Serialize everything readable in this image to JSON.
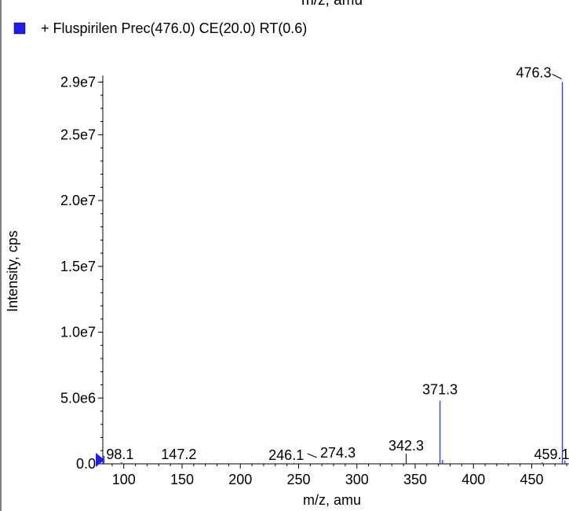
{
  "top_clipped_label": "m/z, amu",
  "legend": {
    "label": "+ Fluspirilen  Prec(476.0) CE(20.0) RT(0.6)",
    "color": "#1e1ef0"
  },
  "chart_data": {
    "type": "bar",
    "xlabel": "m/z, amu",
    "ylabel": "Intensity, cps",
    "xlim": [
      82,
      482
    ],
    "ylim": [
      0,
      29500000
    ],
    "xticks": [
      100,
      150,
      200,
      250,
      300,
      350,
      400,
      450
    ],
    "xtick_labels": [
      "100",
      "150",
      "200",
      "250",
      "300",
      "350",
      "400",
      "450"
    ],
    "yticks": [
      0,
      5000000,
      10000000,
      15000000,
      20000000,
      25000000,
      29000000
    ],
    "ytick_labels": [
      "0.0",
      "5.0e6",
      "1.0e7",
      "1.5e7",
      "2.0e7",
      "2.5e7",
      "2.9e7"
    ],
    "series_color": "#3a3ae0",
    "peaks": [
      {
        "mz": 83,
        "intensity": 600000
      },
      {
        "mz": 98.1,
        "intensity": 120000
      },
      {
        "mz": 147.2,
        "intensity": 60000
      },
      {
        "mz": 246.1,
        "intensity": 80000
      },
      {
        "mz": 274.3,
        "intensity": 60000
      },
      {
        "mz": 342.3,
        "intensity": 80000
      },
      {
        "mz": 371.3,
        "intensity": 4800000
      },
      {
        "mz": 373.5,
        "intensity": 300000
      },
      {
        "mz": 459.1,
        "intensity": 120000
      },
      {
        "mz": 476.3,
        "intensity": 29000000
      },
      {
        "mz": 478.5,
        "intensity": 250000
      }
    ],
    "peak_labels": [
      {
        "text": "98.1",
        "mz": 98.1,
        "intensity": 120000
      },
      {
        "text": "147.2",
        "mz": 147.2,
        "intensity": 60000
      },
      {
        "text": "246.1",
        "mz": 246.1,
        "intensity": 80000
      },
      {
        "text": "274.3",
        "mz": 274.3,
        "intensity": 60000
      },
      {
        "text": "342.3",
        "mz": 342.3,
        "intensity": 80000
      },
      {
        "text": "371.3",
        "mz": 371.3,
        "intensity": 4800000
      },
      {
        "text": "459.1",
        "mz": 459.1,
        "intensity": 120000
      },
      {
        "text": "476.3",
        "mz": 476.3,
        "intensity": 29000000
      }
    ]
  }
}
